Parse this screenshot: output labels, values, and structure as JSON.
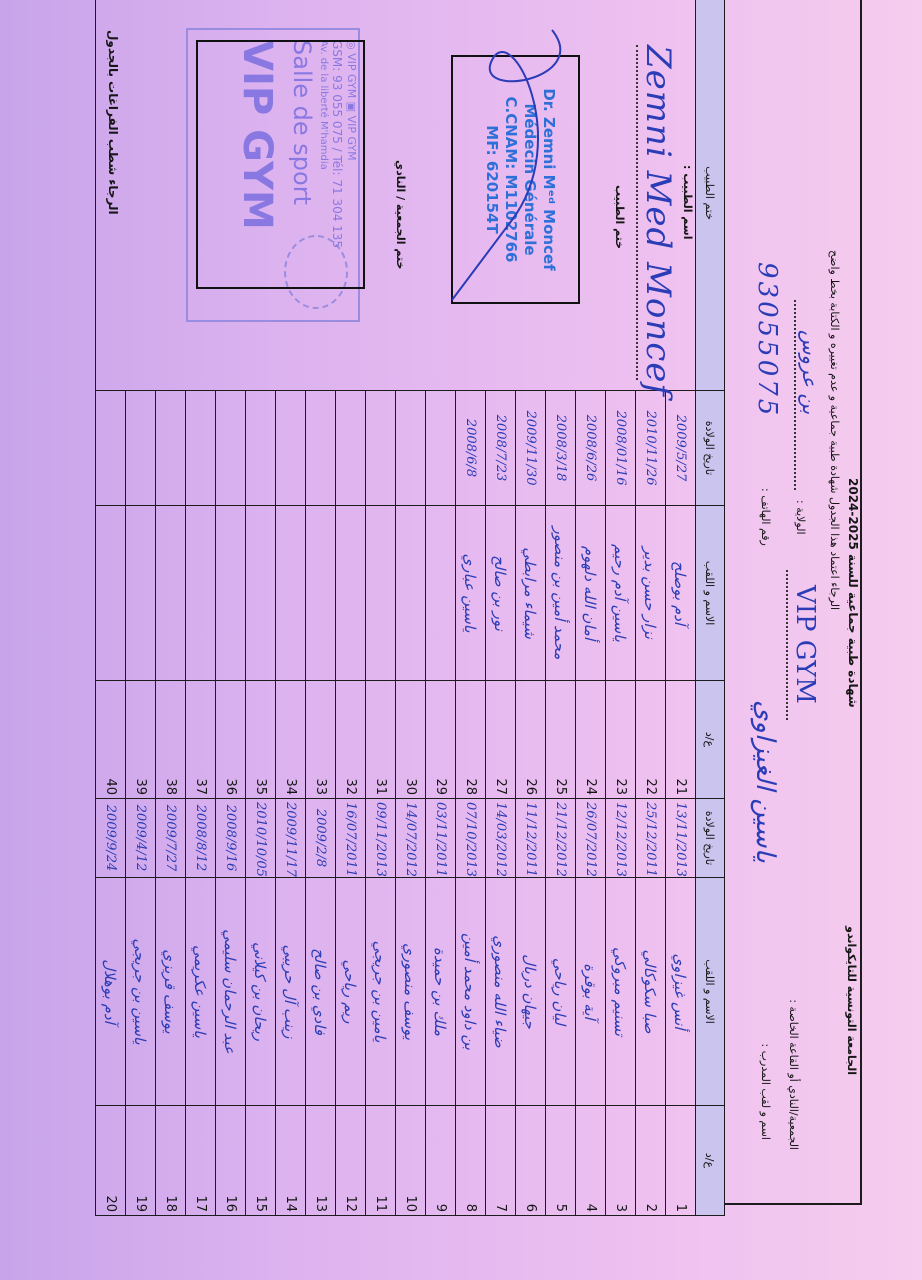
{
  "header": {
    "federation": "الجامعة التونسية للتايكواندو",
    "title": "شهادة طبية جماعية للسنة 2025-2024",
    "instruction": "الرجاء اعتماد هذا الجدول شهادة طبية جماعية و عدم تغييره و الكتابة بخط واضح",
    "club_label": "الجمعية/النادي أو القاعة الخاصة :",
    "coach_label": "اسم و لقب المدرب :",
    "governorate_label": "الولاية :",
    "phone_label": "رقم الهاتف :",
    "club_value": "VIP GYM",
    "coach_value": "ياسين الغيزاوي",
    "governorate_value": "بن عروس",
    "phone_value": "93055075"
  },
  "table": {
    "columns": {
      "number": "ع/د",
      "name": "الاسم و اللقب",
      "birth_date": "تاريخ الولادة",
      "doctor_stamp": "ختم الطبيب"
    },
    "rows_a": [
      {
        "number": "1",
        "name": "أنس غيزاوي",
        "birth_date": "13/11/2013"
      },
      {
        "number": "2",
        "name": "صبا سكوكالي",
        "birth_date": "25/12/2011"
      },
      {
        "number": "3",
        "name": "تسنيم مبروكي",
        "birth_date": "12/12/2013"
      },
      {
        "number": "4",
        "name": "آية بوقرة",
        "birth_date": "26/07/2012"
      },
      {
        "number": "5",
        "name": "ليان رياحي",
        "birth_date": "21/12/2012"
      },
      {
        "number": "6",
        "name": "جيهان دربال",
        "birth_date": "11/12/2011"
      },
      {
        "number": "7",
        "name": "ضياء الله منصوري",
        "birth_date": "14/03/2012"
      },
      {
        "number": "8",
        "name": "بن داود محمد أمين",
        "birth_date": "07/10/2013"
      },
      {
        "number": "9",
        "name": "ملك بن حميدة",
        "birth_date": "03/11/2011"
      },
      {
        "number": "10",
        "name": "يوسف منصوري",
        "birth_date": "14/07/2012"
      },
      {
        "number": "11",
        "name": "يامين بن جريجي",
        "birth_date": "09/11/2013"
      },
      {
        "number": "12",
        "name": "ريم رياحي",
        "birth_date": "16/07/2011"
      },
      {
        "number": "13",
        "name": "فادي بن صالح",
        "birth_date": "2009/2/8"
      },
      {
        "number": "14",
        "name": "زينب آل حريبي",
        "birth_date": "2009/11/17"
      },
      {
        "number": "15",
        "name": "ريحان بن كيلاني",
        "birth_date": "2010/10/05"
      },
      {
        "number": "16",
        "name": "عبد الرحمان سليمي",
        "birth_date": "2008/9/16"
      },
      {
        "number": "17",
        "name": "ياسين عكريمي",
        "birth_date": "2008/8/12"
      },
      {
        "number": "18",
        "name": "يوسف قريزي",
        "birth_date": "2009/7/27"
      },
      {
        "number": "19",
        "name": "ياسين بن جريجي",
        "birth_date": "2009/4/12"
      },
      {
        "number": "20",
        "name": "آدم بوهلال",
        "birth_date": "2009/9/24"
      }
    ],
    "rows_b": [
      {
        "number": "21",
        "name": "آدم بوصلح",
        "birth_date": "2009/5/27"
      },
      {
        "number": "22",
        "name": "نزار حسن بدير",
        "birth_date": "2010/11/26"
      },
      {
        "number": "23",
        "name": "ياسين آدم رحيم",
        "birth_date": "2008/01/16"
      },
      {
        "number": "24",
        "name": "أمان الله دلهوم",
        "birth_date": "2008/6/26"
      },
      {
        "number": "25",
        "name": "محمد أمين بن منصور",
        "birth_date": "2008/3/18"
      },
      {
        "number": "26",
        "name": "شيماء مرابطي",
        "birth_date": "2009/11/30"
      },
      {
        "number": "27",
        "name": "نور بن صالح",
        "birth_date": "2008/7/23"
      },
      {
        "number": "28",
        "name": "ياسين عباري",
        "birth_date": "2008/6/8"
      },
      {
        "number": "29",
        "name": "",
        "birth_date": ""
      },
      {
        "number": "30",
        "name": "",
        "birth_date": ""
      },
      {
        "number": "31",
        "name": "",
        "birth_date": ""
      },
      {
        "number": "32",
        "name": "",
        "birth_date": ""
      },
      {
        "number": "33",
        "name": "",
        "birth_date": ""
      },
      {
        "number": "34",
        "name": "",
        "birth_date": ""
      },
      {
        "number": "35",
        "name": "",
        "birth_date": ""
      },
      {
        "number": "36",
        "name": "",
        "birth_date": ""
      },
      {
        "number": "37",
        "name": "",
        "birth_date": ""
      },
      {
        "number": "38",
        "name": "",
        "birth_date": ""
      },
      {
        "number": "39",
        "name": "",
        "birth_date": ""
      },
      {
        "number": "40",
        "name": "",
        "birth_date": ""
      }
    ]
  },
  "doctor": {
    "name_label": "اسم الطبيب :",
    "signature": "Zemni Med Moncef",
    "stamp_label": "ختم الطبيب",
    "stamp_lines": [
      "Dr. Zemni Mᵉᵈ Moncef",
      "Médecin Générale",
      "C.CNAM: M1102766",
      "MF: 620154T"
    ]
  },
  "club_stamp": {
    "label": "ختم الجمعية / النادي",
    "name": "VIP GYM",
    "subtitle": "Salle de sport",
    "address": "Av. de la liberté M'hamdia",
    "contact": "GSM: 93 055 075 / Tél: 71 304 135",
    "social": "◎ VIP GYM  ▣ VIP GYM"
  },
  "footer_note": "الرجاء شطب الفراغات بالجدول",
  "colors": {
    "handwriting": "#2a3cb6",
    "header_row": "#cbc4ee",
    "doctor_stamp": "#2f6fd8",
    "club_stamp": "#7b6ee0"
  }
}
